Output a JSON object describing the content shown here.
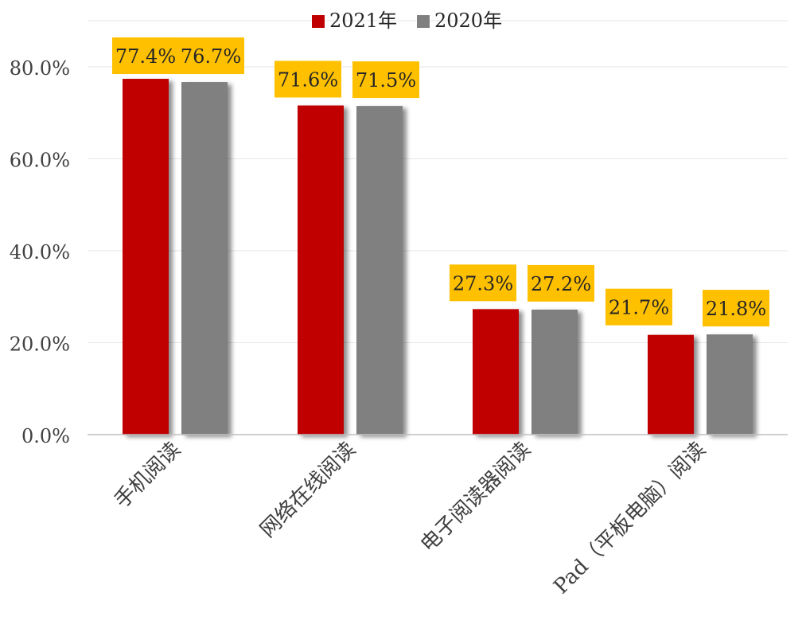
{
  "chart_data": {
    "type": "bar",
    "categories": [
      "手机阅读",
      "网络在线阅读",
      "电子阅读器阅读",
      "Pad（平板电脑）阅读"
    ],
    "series": [
      {
        "name": "2021年",
        "values": [
          77.4,
          71.6,
          27.3,
          21.7
        ],
        "color": "#C00000"
      },
      {
        "name": "2020年",
        "values": [
          76.7,
          71.5,
          27.2,
          21.8
        ],
        "color": "#808080"
      }
    ],
    "data_labels": [
      [
        "77.4%",
        "71.6%",
        "27.3%",
        "21.7%"
      ],
      [
        "76.7%",
        "71.5%",
        "27.2%",
        "21.8%"
      ]
    ],
    "y_ticks": [
      0,
      20,
      40,
      60,
      80
    ],
    "y_tick_labels": [
      "0.0%",
      "20.0%",
      "40.0%",
      "60.0%",
      "80.0%"
    ],
    "ylim": [
      0,
      80
    ],
    "grid": true,
    "legend_position": "top-center",
    "label_box_color": "#FFC000",
    "title": "",
    "xlabel": "",
    "ylabel": ""
  }
}
